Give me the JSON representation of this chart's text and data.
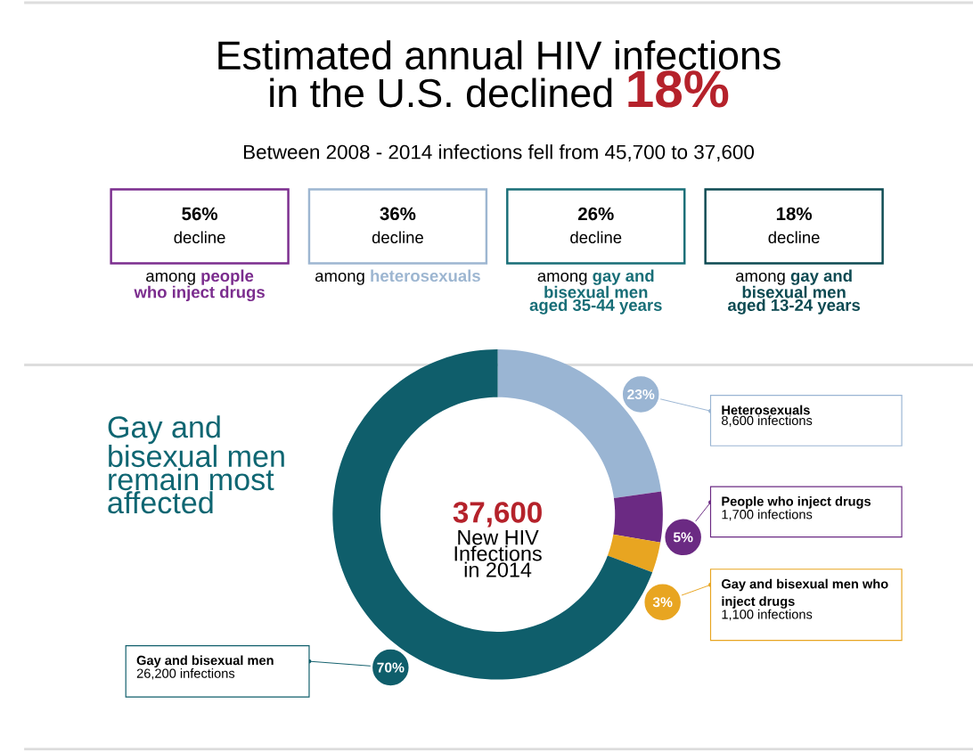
{
  "chart_data": [
    {
      "type": "other",
      "title": "Estimated annual HIV infections in the U.S. declined",
      "subtitle": "Between 2008 - 2014 infections fell from 45,700 to 37,600",
      "annotations": [
        "18%",
        "56%",
        "decline",
        "among",
        "people who inject drugs",
        "36%",
        "decline",
        "among",
        "heterosexuals",
        "26%",
        "decline",
        "among",
        "gay and bisexual men aged 35-44 years",
        "18%",
        "decline",
        "among",
        "gay and bisexual men aged 13-24 years"
      ],
      "colors": [
        "#7b2d8e",
        "#9db6d1",
        "#186e77",
        "#0d4a52"
      ]
    },
    {
      "type": "donut",
      "title": "Gay and bisexual men remain most affected",
      "categories": [
        "Heterosexuals",
        "People who inject drugs",
        "Gay and bisexual men who inject drugs",
        "Gay and bisexual men"
      ],
      "values": [
        23,
        5,
        3,
        70
      ],
      "value_labels": [
        "23%",
        "5%",
        "3%",
        "70%"
      ],
      "legend": "right",
      "colors": [
        "#9ab5d3",
        "#6b2a83",
        "#e8a521",
        "#0f5e6b"
      ],
      "annotations": [
        {
          "text": "8,600 infections",
          "x": "Heterosexuals"
        },
        {
          "text": "1,700 infections",
          "x": "People who inject drugs"
        },
        {
          "text": "1,100 infections",
          "x": "Gay and bisexual men who inject drugs"
        },
        {
          "text": "26,200 infections",
          "x": "Gay and bisexual men"
        },
        "37,600",
        "New HIV Infections in 2014"
      ]
    }
  ]
}
